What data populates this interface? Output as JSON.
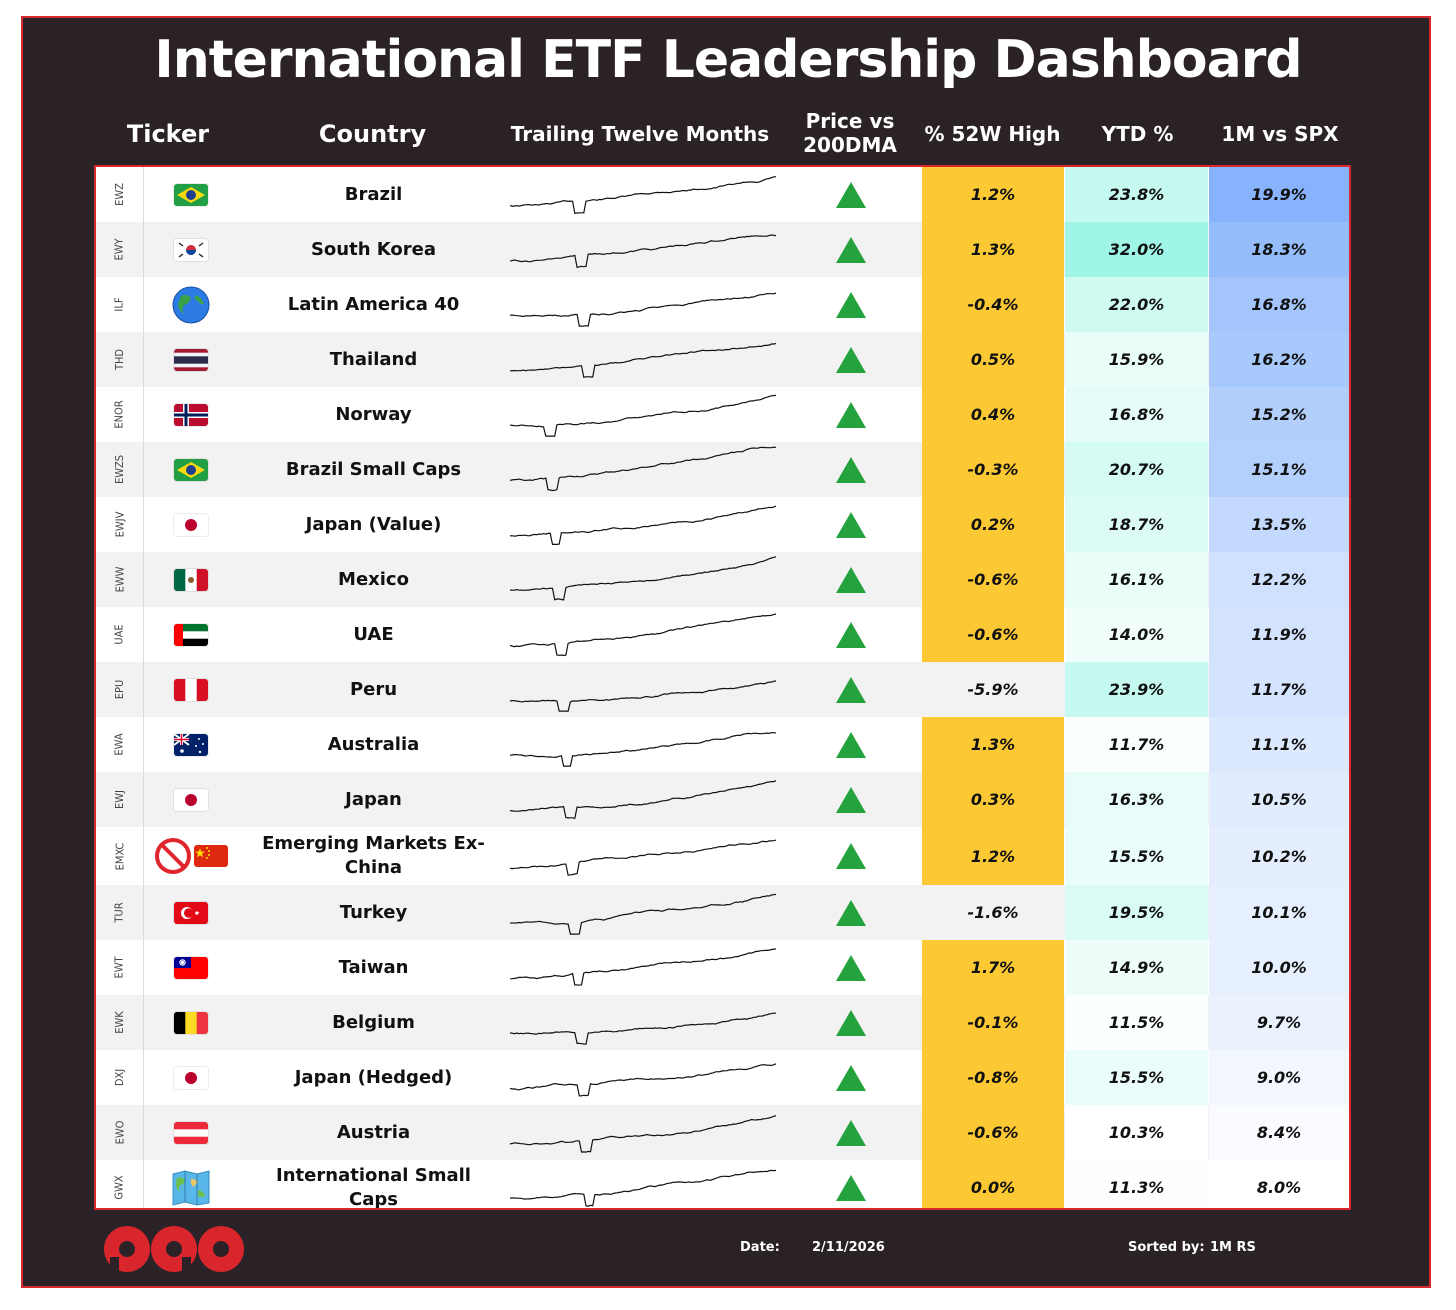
{
  "title": "International ETF Leadership Dashboard",
  "headers": {
    "ticker": "Ticker",
    "country": "Country",
    "ttm": "Trailing Twelve Months",
    "price_vs_1": "Price vs",
    "price_vs_2": "200DMA",
    "pct_52w": "% 52W High",
    "ytd": "YTD %",
    "rs": "1M vs SPX"
  },
  "colors": {
    "frame_bg": "#2a2226",
    "border_red": "#d9262c",
    "highlight_yellow": "#fcc934",
    "triangle_green": "#23a23d"
  },
  "rows": [
    {
      "ticker": "EWZ",
      "flag": "brazil-flag-icon",
      "country": "Brazil",
      "above_200dma": true,
      "pct_52w": "1.2%",
      "ytd": "23.8%",
      "rs": "19.9%",
      "near_high": true
    },
    {
      "ticker": "EWY",
      "flag": "south-korea-flag-icon",
      "country": "South Korea",
      "above_200dma": true,
      "pct_52w": "1.3%",
      "ytd": "32.0%",
      "rs": "18.3%",
      "near_high": true
    },
    {
      "ticker": "ILF",
      "flag": "globe-icon",
      "country": "Latin America 40",
      "above_200dma": true,
      "pct_52w": "-0.4%",
      "ytd": "22.0%",
      "rs": "16.8%",
      "near_high": true
    },
    {
      "ticker": "THD",
      "flag": "thailand-flag-icon",
      "country": "Thailand",
      "above_200dma": true,
      "pct_52w": "0.5%",
      "ytd": "15.9%",
      "rs": "16.2%",
      "near_high": true
    },
    {
      "ticker": "ENOR",
      "flag": "norway-flag-icon",
      "country": "Norway",
      "above_200dma": true,
      "pct_52w": "0.4%",
      "ytd": "16.8%",
      "rs": "15.2%",
      "near_high": true
    },
    {
      "ticker": "EWZS",
      "flag": "brazil-flag-icon",
      "country": "Brazil Small Caps",
      "above_200dma": true,
      "pct_52w": "-0.3%",
      "ytd": "20.7%",
      "rs": "15.1%",
      "near_high": true
    },
    {
      "ticker": "EWJV",
      "flag": "japan-flag-icon",
      "country": "Japan (Value)",
      "above_200dma": true,
      "pct_52w": "0.2%",
      "ytd": "18.7%",
      "rs": "13.5%",
      "near_high": true
    },
    {
      "ticker": "EWW",
      "flag": "mexico-flag-icon",
      "country": "Mexico",
      "above_200dma": true,
      "pct_52w": "-0.6%",
      "ytd": "16.1%",
      "rs": "12.2%",
      "near_high": true
    },
    {
      "ticker": "UAE",
      "flag": "uae-flag-icon",
      "country": "UAE",
      "above_200dma": true,
      "pct_52w": "-0.6%",
      "ytd": "14.0%",
      "rs": "11.9%",
      "near_high": true
    },
    {
      "ticker": "EPU",
      "flag": "peru-flag-icon",
      "country": "Peru",
      "above_200dma": true,
      "pct_52w": "-5.9%",
      "ytd": "23.9%",
      "rs": "11.7%",
      "near_high": false
    },
    {
      "ticker": "EWA",
      "flag": "australia-flag-icon",
      "country": "Australia",
      "above_200dma": true,
      "pct_52w": "1.3%",
      "ytd": "11.7%",
      "rs": "11.1%",
      "near_high": true
    },
    {
      "ticker": "EWJ",
      "flag": "japan-flag-icon",
      "country": "Japan",
      "above_200dma": true,
      "pct_52w": "0.3%",
      "ytd": "16.3%",
      "rs": "10.5%",
      "near_high": true
    },
    {
      "ticker": "EMXC",
      "flag": "no-china-flag-icon",
      "country": "Emerging Markets Ex-China",
      "above_200dma": true,
      "pct_52w": "1.2%",
      "ytd": "15.5%",
      "rs": "10.2%",
      "near_high": true
    },
    {
      "ticker": "TUR",
      "flag": "turkey-flag-icon",
      "country": "Turkey",
      "above_200dma": true,
      "pct_52w": "-1.6%",
      "ytd": "19.5%",
      "rs": "10.1%",
      "near_high": false
    },
    {
      "ticker": "EWT",
      "flag": "taiwan-flag-icon",
      "country": "Taiwan",
      "above_200dma": true,
      "pct_52w": "1.7%",
      "ytd": "14.9%",
      "rs": "10.0%",
      "near_high": true
    },
    {
      "ticker": "EWK",
      "flag": "belgium-flag-icon",
      "country": "Belgium",
      "above_200dma": true,
      "pct_52w": "-0.1%",
      "ytd": "11.5%",
      "rs": "9.7%",
      "near_high": true
    },
    {
      "ticker": "DXJ",
      "flag": "japan-flag-icon",
      "country": "Japan (Hedged)",
      "above_200dma": true,
      "pct_52w": "-0.8%",
      "ytd": "15.5%",
      "rs": "9.0%",
      "near_high": true
    },
    {
      "ticker": "EWO",
      "flag": "austria-flag-icon",
      "country": "Austria",
      "above_200dma": true,
      "pct_52w": "-0.6%",
      "ytd": "10.3%",
      "rs": "8.4%",
      "near_high": true
    },
    {
      "ticker": "GWX",
      "flag": "world-map-icon",
      "country": "International Small Caps",
      "above_200dma": true,
      "pct_52w": "0.0%",
      "ytd": "11.3%",
      "rs": "8.0%",
      "near_high": true
    }
  ],
  "footer": {
    "date_label": "Date:",
    "date_value": "2/11/2026",
    "sorted_label": "Sorted by:",
    "sorted_value": "1M RS"
  }
}
